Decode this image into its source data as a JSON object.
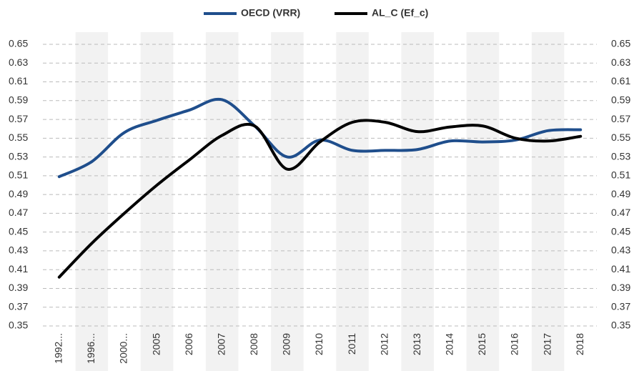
{
  "chart_data": {
    "type": "line",
    "categories": [
      "1992...",
      "1996...",
      "2000...",
      "2005",
      "2006",
      "2007",
      "2008",
      "2009",
      "2010",
      "2011",
      "2012",
      "2013",
      "2014",
      "2015",
      "2016",
      "2017",
      "2018"
    ],
    "series": [
      {
        "name": "OECD (VRR)",
        "color": "#1f4e8c",
        "values": [
          0.509,
          0.525,
          0.556,
          0.569,
          0.58,
          0.591,
          0.563,
          0.53,
          0.548,
          0.537,
          0.537,
          0.538,
          0.547,
          0.546,
          0.548,
          0.558,
          0.559
        ]
      },
      {
        "name": "AL_C (Ef_c)",
        "color": "#000000",
        "values": [
          0.402,
          0.438,
          0.47,
          0.5,
          0.527,
          0.553,
          0.563,
          0.517,
          0.546,
          0.567,
          0.567,
          0.557,
          0.562,
          0.563,
          0.55,
          0.547,
          0.552
        ]
      }
    ],
    "ylim": [
      0.35,
      0.65
    ],
    "yticks": [
      0.35,
      0.37,
      0.39,
      0.41,
      0.43,
      0.45,
      0.47,
      0.49,
      0.51,
      0.53,
      0.55,
      0.57,
      0.59,
      0.61,
      0.63,
      0.65
    ],
    "y2lim": [
      0.35,
      0.65
    ],
    "y2ticks": [
      0.35,
      0.37,
      0.39,
      0.41,
      0.43,
      0.45,
      0.47,
      0.49,
      0.51,
      0.53,
      0.55,
      0.57,
      0.59,
      0.61,
      0.63,
      0.65
    ],
    "grid": true
  }
}
